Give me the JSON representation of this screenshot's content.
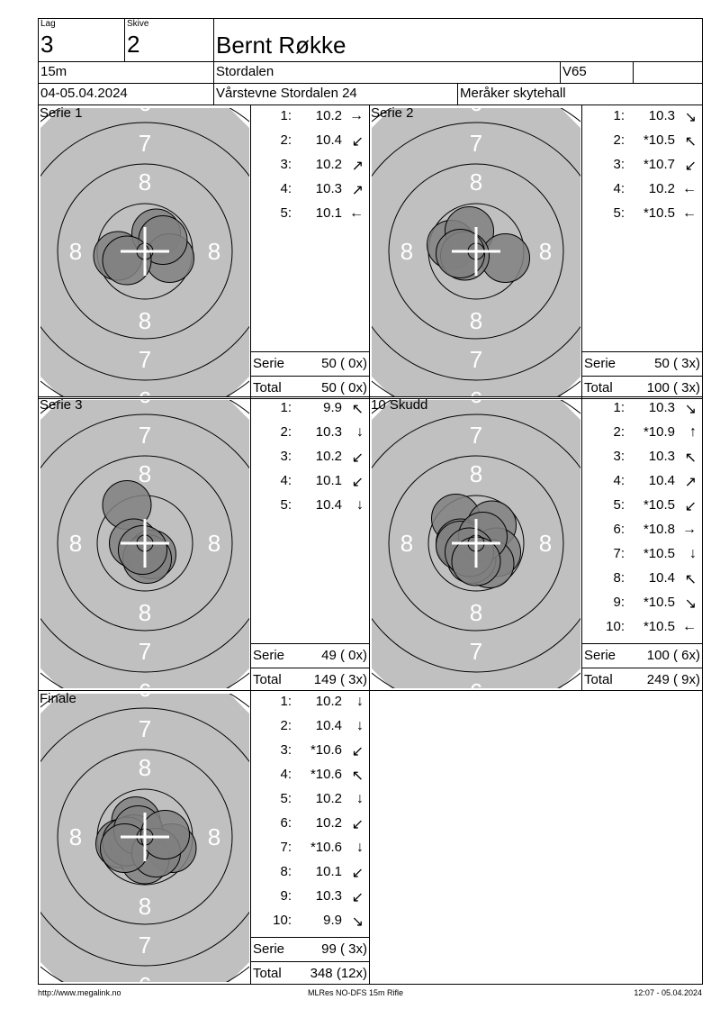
{
  "header": {
    "lag_label": "Lag",
    "lag": "3",
    "skive_label": "Skive",
    "skive": "2",
    "name": "Bernt Røkke",
    "distance": "15m",
    "club": "Stordalen",
    "class": "V65",
    "extra": "",
    "date": "04-05.04.2024",
    "event": "Vårstevne Stordalen 24",
    "venue": "Meråker skytehall"
  },
  "target_labels": {
    "ring6": "6",
    "ring7": "7",
    "ring8": "8"
  },
  "colors": {
    "target": "#c0c0c0",
    "hit": "#808080",
    "ring": "#000000",
    "cross": "#ffffff"
  },
  "panels": [
    {
      "title": "Serie 1",
      "serie_label": "Serie",
      "serie": "50 ( 0x)",
      "total_label": "Total",
      "total": "50 ( 0x)",
      "shots": [
        {
          "n": "1:",
          "v": "10.2",
          "dir": "→",
          "x": -12,
          "y": 2
        },
        {
          "n": "2:",
          "v": "10.4",
          "dir": "↙",
          "x": 5,
          "y": -8
        },
        {
          "n": "3:",
          "v": "10.2",
          "dir": "↗",
          "x": 11,
          "y": 3
        },
        {
          "n": "4:",
          "v": "10.3",
          "dir": "↗",
          "x": 8,
          "y": -5
        },
        {
          "n": "5:",
          "v": "10.1",
          "dir": "←",
          "x": -8,
          "y": 4
        }
      ]
    },
    {
      "title": "Serie 2",
      "serie_label": "Serie",
      "serie": "50 ( 3x)",
      "total_label": "Total",
      "total": "100 ( 3x)",
      "shots": [
        {
          "n": "1:",
          "v": "10.3",
          "dir": "↘",
          "x": -11,
          "y": -3
        },
        {
          "n": "2:",
          "v": "*10.5",
          "dir": "↖",
          "x": -3,
          "y": -9
        },
        {
          "n": "3:",
          "v": "*10.7",
          "dir": "↙",
          "x": 13,
          "y": 3
        },
        {
          "n": "4:",
          "v": "10.2",
          "dir": "←",
          "x": -5,
          "y": 2
        },
        {
          "n": "5:",
          "v": "*10.5",
          "dir": "←",
          "x": -7,
          "y": 1
        }
      ]
    },
    {
      "title": "Serie 3",
      "serie_label": "Serie",
      "serie": "49 ( 0x)",
      "total_label": "Total",
      "total": "149 ( 3x)",
      "shots": [
        {
          "n": "1:",
          "v": "9.9",
          "dir": "↖",
          "x": -8,
          "y": -17
        },
        {
          "n": "2:",
          "v": "10.3",
          "dir": "↓",
          "x": -5,
          "y": 0
        },
        {
          "n": "3:",
          "v": "10.2",
          "dir": "↙",
          "x": 3,
          "y": 5
        },
        {
          "n": "4:",
          "v": "10.1",
          "dir": "↙",
          "x": 1,
          "y": 7
        },
        {
          "n": "5:",
          "v": "10.4",
          "dir": "↓",
          "x": -1,
          "y": 3
        }
      ]
    },
    {
      "title": "10 Skudd",
      "serie_label": "Serie",
      "serie": "100 ( 6x)",
      "total_label": "Total",
      "total": "249 ( 9x)",
      "shots": [
        {
          "n": "1:",
          "v": "10.3",
          "dir": "↘",
          "x": -9,
          "y": -11
        },
        {
          "n": "2:",
          "v": "*10.9",
          "dir": "↑",
          "x": 7,
          "y": -8
        },
        {
          "n": "3:",
          "v": "10.3",
          "dir": "↖",
          "x": -7,
          "y": 0
        },
        {
          "n": "4:",
          "v": "10.4",
          "dir": "↗",
          "x": 9,
          "y": 4
        },
        {
          "n": "5:",
          "v": "*10.5",
          "dir": "↙",
          "x": 6,
          "y": 9
        },
        {
          "n": "6:",
          "v": "*10.8",
          "dir": "→",
          "x": -2,
          "y": 7
        },
        {
          "n": "7:",
          "v": "*10.5",
          "dir": "↓",
          "x": -7,
          "y": 1
        },
        {
          "n": "8:",
          "v": "10.4",
          "dir": "↖",
          "x": 3,
          "y": -3
        },
        {
          "n": "9:",
          "v": "*10.5",
          "dir": "↘",
          "x": -3,
          "y": 4
        },
        {
          "n": "10:",
          "v": "*10.5",
          "dir": "←",
          "x": 0,
          "y": 8
        }
      ]
    },
    {
      "title": "Finale",
      "serie_label": "Serie",
      "serie": "99 ( 3x)",
      "total_label": "Total",
      "total": "348 (12x)",
      "shots": [
        {
          "n": "1:",
          "v": "10.2",
          "dir": "↓",
          "x": -4,
          "y": -7
        },
        {
          "n": "2:",
          "v": "10.4",
          "dir": "↓",
          "x": -11,
          "y": 3
        },
        {
          "n": "3:",
          "v": "*10.6",
          "dir": "↙",
          "x": 12,
          "y": 5
        },
        {
          "n": "4:",
          "v": "*10.6",
          "dir": "↖",
          "x": -5,
          "y": 1
        },
        {
          "n": "5:",
          "v": "10.2",
          "dir": "↓",
          "x": 0,
          "y": 10
        },
        {
          "n": "6:",
          "v": "10.2",
          "dir": "↙",
          "x": -8,
          "y": 2
        },
        {
          "n": "7:",
          "v": "*10.6",
          "dir": "↓",
          "x": -3,
          "y": -3
        },
        {
          "n": "8:",
          "v": "10.1",
          "dir": "↙",
          "x": 5,
          "y": 7
        },
        {
          "n": "9:",
          "v": "10.3",
          "dir": "↙",
          "x": -9,
          "y": 5
        },
        {
          "n": "10:",
          "v": "9.9",
          "dir": "↘",
          "x": 9,
          "y": -1
        }
      ]
    }
  ],
  "footer": {
    "url": "http://www.megalink.no",
    "program": "MLRes NO-DFS 15m Rifle",
    "timestamp": "12:07 - 05.04.2024"
  }
}
